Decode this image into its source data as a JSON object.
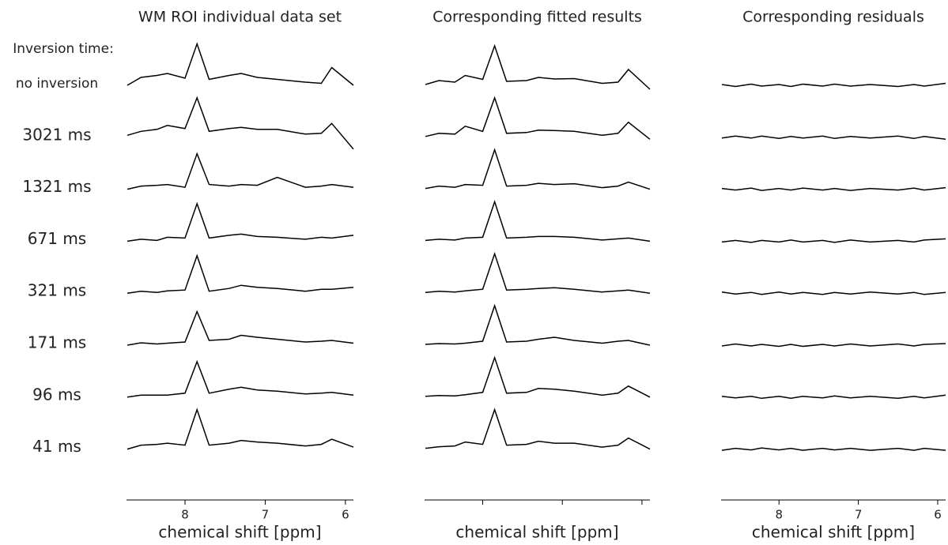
{
  "row_header": "Inversion time:",
  "inversion_times": [
    "no inversion",
    "3021 ms",
    "1321 ms",
    "671 ms",
    "321 ms",
    "171 ms",
    "96 ms",
    "41 ms"
  ],
  "chart_data": [
    {
      "type": "line",
      "title": "WM ROI individual data set",
      "xlabel": "chemical shift [ppm]",
      "xlim": [
        8.73,
        5.9
      ],
      "xticks": [
        8,
        7,
        6
      ],
      "tick_labels": true,
      "color": "#000000",
      "x": [
        8.72,
        8.55,
        8.35,
        8.22,
        8.0,
        7.85,
        7.7,
        7.45,
        7.3,
        7.1,
        6.85,
        6.5,
        6.3,
        6.17,
        5.9
      ],
      "series": [
        {
          "values": [
            0.0,
            0.2,
            0.25,
            0.3,
            0.18,
            1.05,
            0.15,
            0.25,
            0.3,
            0.2,
            0.15,
            0.08,
            0.05,
            0.45,
            0.0
          ]
        },
        {
          "values": [
            0.05,
            0.15,
            0.2,
            0.3,
            0.22,
            1.0,
            0.15,
            0.22,
            0.25,
            0.2,
            0.2,
            0.08,
            0.1,
            0.35,
            -0.3
          ]
        },
        {
          "values": [
            0.0,
            0.08,
            0.1,
            0.12,
            0.05,
            0.9,
            0.12,
            0.08,
            0.12,
            0.1,
            0.3,
            0.05,
            0.08,
            0.12,
            0.05
          ]
        },
        {
          "values": [
            0.0,
            0.05,
            0.02,
            0.1,
            0.08,
            0.95,
            0.08,
            0.15,
            0.18,
            0.12,
            0.1,
            0.05,
            0.1,
            0.08,
            0.15
          ]
        },
        {
          "values": [
            0.0,
            0.05,
            0.02,
            0.06,
            0.08,
            0.95,
            0.05,
            0.12,
            0.2,
            0.15,
            0.12,
            0.05,
            0.1,
            0.1,
            0.15
          ]
        },
        {
          "values": [
            0.0,
            0.06,
            0.03,
            0.05,
            0.08,
            0.85,
            0.12,
            0.15,
            0.25,
            0.2,
            0.15,
            0.08,
            0.1,
            0.12,
            0.05
          ]
        },
        {
          "values": [
            0.0,
            0.05,
            0.05,
            0.05,
            0.1,
            0.9,
            0.1,
            0.2,
            0.25,
            0.18,
            0.15,
            0.08,
            0.1,
            0.12,
            0.05
          ]
        },
        {
          "values": [
            0.0,
            0.1,
            0.12,
            0.15,
            0.1,
            1.0,
            0.1,
            0.15,
            0.22,
            0.18,
            0.15,
            0.08,
            0.12,
            0.25,
            0.05
          ]
        }
      ]
    },
    {
      "type": "line",
      "title": "Corresponding fitted results",
      "xlabel": "chemical shift [ppm]",
      "xlim": [
        8.73,
        5.9
      ],
      "xticks": [
        8,
        7,
        6
      ],
      "tick_labels": false,
      "color": "#000000",
      "x": [
        8.72,
        8.55,
        8.35,
        8.22,
        8.0,
        7.85,
        7.7,
        7.45,
        7.3,
        7.1,
        6.85,
        6.5,
        6.3,
        6.17,
        5.9
      ],
      "series": [
        {
          "values": [
            0.02,
            0.12,
            0.08,
            0.25,
            0.15,
            1.0,
            0.1,
            0.12,
            0.2,
            0.16,
            0.17,
            0.05,
            0.08,
            0.4,
            -0.1
          ]
        },
        {
          "values": [
            0.02,
            0.1,
            0.08,
            0.28,
            0.15,
            1.0,
            0.1,
            0.12,
            0.18,
            0.17,
            0.15,
            0.05,
            0.1,
            0.38,
            -0.05
          ]
        },
        {
          "values": [
            0.02,
            0.08,
            0.05,
            0.12,
            0.1,
            1.0,
            0.08,
            0.1,
            0.15,
            0.12,
            0.14,
            0.04,
            0.08,
            0.18,
            0.0
          ]
        },
        {
          "values": [
            0.02,
            0.05,
            0.03,
            0.08,
            0.1,
            1.0,
            0.08,
            0.1,
            0.12,
            0.12,
            0.1,
            0.03,
            0.06,
            0.08,
            0.0
          ]
        },
        {
          "values": [
            0.02,
            0.05,
            0.03,
            0.06,
            0.1,
            1.0,
            0.08,
            0.1,
            0.12,
            0.14,
            0.1,
            0.03,
            0.06,
            0.08,
            0.0
          ]
        },
        {
          "values": [
            0.02,
            0.04,
            0.03,
            0.05,
            0.1,
            1.0,
            0.08,
            0.1,
            0.15,
            0.2,
            0.12,
            0.05,
            0.1,
            0.12,
            0.0
          ]
        },
        {
          "values": [
            0.02,
            0.04,
            0.03,
            0.06,
            0.12,
            1.0,
            0.1,
            0.12,
            0.22,
            0.2,
            0.15,
            0.05,
            0.1,
            0.28,
            0.0
          ]
        },
        {
          "values": [
            0.02,
            0.06,
            0.08,
            0.18,
            0.12,
            1.0,
            0.1,
            0.12,
            0.2,
            0.15,
            0.15,
            0.05,
            0.1,
            0.28,
            0.0
          ]
        }
      ]
    },
    {
      "type": "line",
      "title": "Corresponding residuals",
      "xlabel": "chemical shift [ppm]",
      "xlim": [
        8.73,
        5.9
      ],
      "xticks": [
        8,
        7,
        6
      ],
      "tick_labels": true,
      "color": "#000000",
      "x": [
        8.72,
        8.55,
        8.35,
        8.22,
        8.0,
        7.85,
        7.7,
        7.45,
        7.3,
        7.1,
        6.85,
        6.5,
        6.3,
        6.17,
        5.9
      ],
      "series": [
        {
          "values": [
            0.02,
            -0.03,
            0.03,
            -0.02,
            0.02,
            -0.03,
            0.03,
            -0.02,
            0.03,
            -0.02,
            0.02,
            -0.03,
            0.02,
            -0.02,
            0.05
          ]
        },
        {
          "values": [
            -0.02,
            0.03,
            -0.02,
            0.03,
            -0.03,
            0.02,
            -0.02,
            0.03,
            -0.03,
            0.02,
            -0.02,
            0.03,
            -0.03,
            0.02,
            -0.05
          ]
        },
        {
          "values": [
            0.02,
            -0.02,
            0.03,
            -0.03,
            0.02,
            -0.02,
            0.03,
            -0.02,
            0.02,
            -0.03,
            0.02,
            -0.02,
            0.03,
            -0.02,
            0.04
          ]
        },
        {
          "values": [
            -0.02,
            0.02,
            -0.03,
            0.02,
            -0.02,
            0.03,
            -0.02,
            0.02,
            -0.03,
            0.03,
            -0.02,
            0.02,
            -0.02,
            0.03,
            0.06
          ]
        },
        {
          "values": [
            0.03,
            -0.02,
            0.02,
            -0.03,
            0.03,
            -0.02,
            0.02,
            -0.03,
            0.02,
            -0.02,
            0.03,
            -0.02,
            0.02,
            -0.03,
            0.02
          ]
        },
        {
          "values": [
            -0.02,
            0.03,
            -0.02,
            0.02,
            -0.03,
            0.02,
            -0.03,
            0.02,
            -0.02,
            0.03,
            -0.02,
            0.03,
            -0.02,
            0.02,
            0.04
          ]
        },
        {
          "values": [
            0.02,
            -0.02,
            0.02,
            -0.03,
            0.02,
            -0.03,
            0.02,
            -0.02,
            0.03,
            -0.02,
            0.02,
            -0.03,
            0.02,
            -0.02,
            0.05
          ]
        },
        {
          "values": [
            -0.03,
            0.02,
            -0.02,
            0.03,
            -0.02,
            0.02,
            -0.03,
            0.02,
            -0.02,
            0.02,
            -0.03,
            0.02,
            -0.03,
            0.02,
            -0.03
          ]
        }
      ]
    }
  ]
}
